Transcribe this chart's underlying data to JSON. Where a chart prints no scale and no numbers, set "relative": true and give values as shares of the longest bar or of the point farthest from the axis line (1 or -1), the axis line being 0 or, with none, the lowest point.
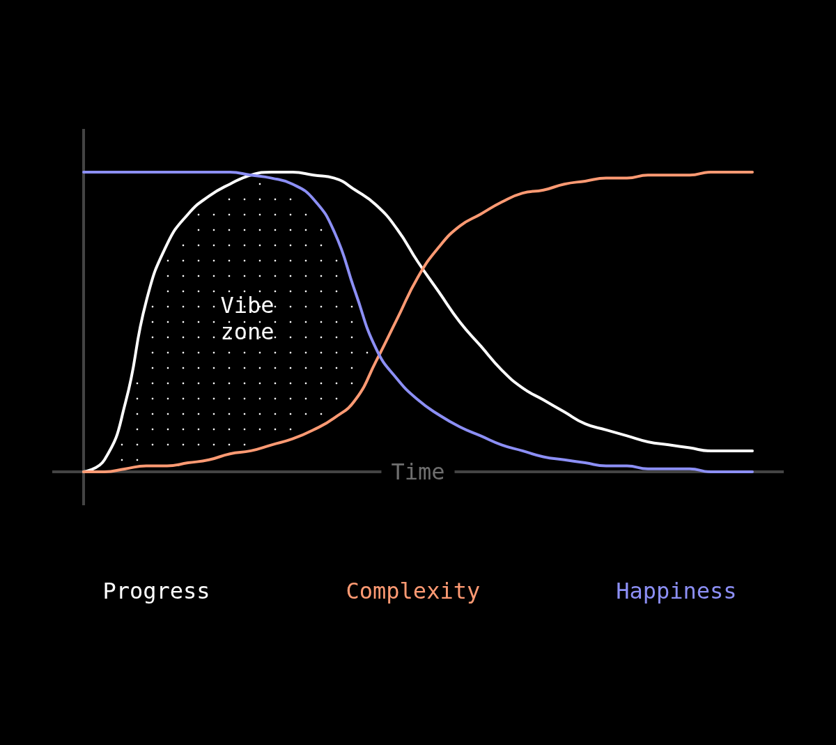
{
  "chart_data": {
    "type": "line",
    "relative": true,
    "xlabel": "Time",
    "legend": "bottom",
    "marker": "none",
    "line_style": "solid",
    "grid": false,
    "annotations": [
      "Vibe zone"
    ],
    "categories": [
      null,
      null,
      null,
      null,
      null,
      null,
      null,
      null,
      null,
      null,
      null,
      null,
      null,
      null,
      null,
      null,
      null,
      null,
      null,
      null,
      null,
      null,
      null,
      null,
      null,
      null,
      null,
      null,
      null,
      null,
      null,
      null,
      null
    ],
    "series": [
      {
        "name": "Progress",
        "color": "#ffffff",
        "values": [
          0,
          0.04,
          0.23,
          0.57,
          0.76,
          0.86,
          0.92,
          0.96,
          0.99,
          1.0,
          1.0,
          0.99,
          0.98,
          0.94,
          0.89,
          0.81,
          0.7,
          0.6,
          0.5,
          0.42,
          0.34,
          0.28,
          0.24,
          0.2,
          0.16,
          0.14,
          0.12,
          0.1,
          0.09,
          0.08,
          0.07,
          0.07,
          0.07
        ]
      },
      {
        "name": "Complexity",
        "color": "#ff9a73",
        "values": [
          0,
          0,
          0.01,
          0.02,
          0.02,
          0.03,
          0.04,
          0.06,
          0.07,
          0.09,
          0.11,
          0.14,
          0.18,
          0.24,
          0.37,
          0.51,
          0.65,
          0.75,
          0.82,
          0.86,
          0.9,
          0.93,
          0.94,
          0.96,
          0.97,
          0.98,
          0.98,
          0.99,
          0.99,
          0.99,
          1.0,
          1.0,
          1.0
        ]
      },
      {
        "name": "Happiness",
        "color": "#8c8ff5",
        "values": [
          1,
          1,
          1,
          1,
          1,
          1,
          1,
          1,
          0.99,
          0.98,
          0.96,
          0.91,
          0.8,
          0.6,
          0.41,
          0.31,
          0.24,
          0.19,
          0.15,
          0.12,
          0.09,
          0.07,
          0.05,
          0.04,
          0.03,
          0.02,
          0.02,
          0.01,
          0.01,
          0.01,
          0,
          0,
          0
        ]
      }
    ]
  }
}
